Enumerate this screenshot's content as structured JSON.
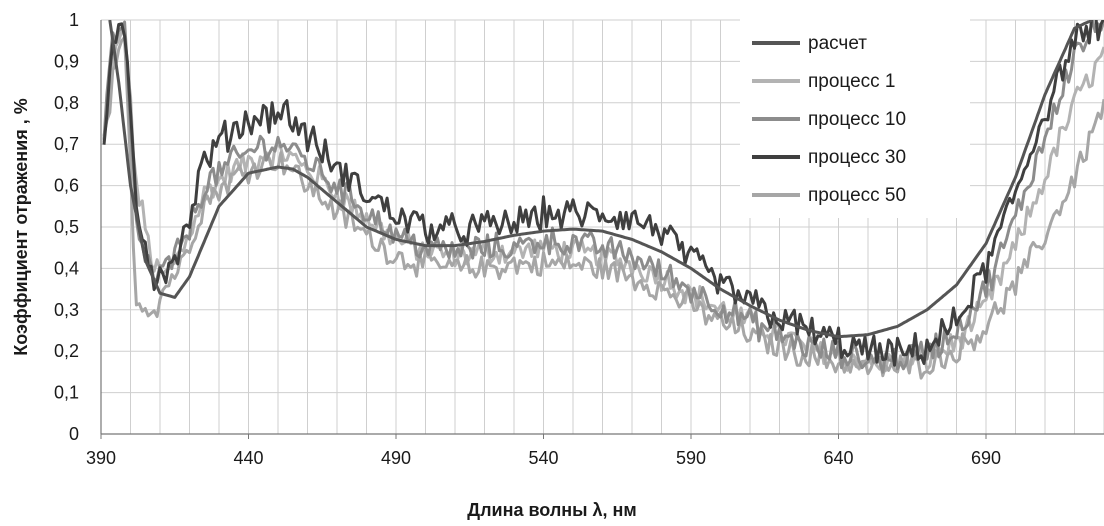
{
  "chart_data": {
    "type": "line",
    "xlabel": "Длина волны λ, нм",
    "ylabel": "Коэффициент отражения , %",
    "xlim": [
      390,
      730
    ],
    "ylim": [
      0,
      1
    ],
    "x_ticks": [
      390,
      440,
      490,
      540,
      590,
      640,
      690
    ],
    "x_tick_labels": [
      "390",
      "440",
      "490",
      "540",
      "590",
      "640",
      "690"
    ],
    "x_minor_step": 10,
    "y_ticks": [
      0,
      0.1,
      0.2,
      0.3,
      0.4,
      0.5,
      0.6,
      0.7,
      0.8,
      0.9,
      1
    ],
    "y_tick_labels": [
      "0",
      "0,1",
      "0,2",
      "0,3",
      "0,4",
      "0,5",
      "0,6",
      "0,7",
      "0,8",
      "0,9",
      "1"
    ],
    "grid": true,
    "legend_position": "top-right",
    "series": [
      {
        "name": "расчет",
        "color": "#555555",
        "noisy": false,
        "x": [
          393,
          396,
          400,
          405,
          410,
          415,
          420,
          430,
          440,
          450,
          455,
          460,
          470,
          480,
          490,
          500,
          510,
          520,
          530,
          540,
          550,
          560,
          570,
          580,
          590,
          600,
          610,
          620,
          630,
          640,
          650,
          660,
          670,
          680,
          690,
          700,
          710,
          720,
          726
        ],
        "y": [
          1.0,
          0.85,
          0.6,
          0.42,
          0.34,
          0.33,
          0.38,
          0.55,
          0.63,
          0.645,
          0.64,
          0.62,
          0.56,
          0.5,
          0.47,
          0.455,
          0.455,
          0.465,
          0.48,
          0.49,
          0.495,
          0.49,
          0.47,
          0.44,
          0.4,
          0.35,
          0.31,
          0.275,
          0.25,
          0.235,
          0.24,
          0.26,
          0.3,
          0.36,
          0.46,
          0.62,
          0.82,
          0.98,
          1.0
        ]
      },
      {
        "name": "процесс 1",
        "color": "#b3b3b3",
        "noisy": true,
        "amp": 0.028,
        "x": [
          391,
          394,
          398,
          402,
          408,
          412,
          418,
          425,
          435,
          445,
          452,
          460,
          470,
          480,
          490,
          500,
          510,
          520,
          530,
          540,
          550,
          560,
          570,
          580,
          590,
          600,
          610,
          620,
          630,
          640,
          650,
          660,
          670,
          680,
          690,
          700,
          710,
          720,
          730
        ],
        "y": [
          0.7,
          0.9,
          0.98,
          0.6,
          0.4,
          0.38,
          0.45,
          0.58,
          0.64,
          0.67,
          0.68,
          0.64,
          0.58,
          0.52,
          0.47,
          0.44,
          0.43,
          0.44,
          0.44,
          0.45,
          0.44,
          0.43,
          0.41,
          0.38,
          0.34,
          0.3,
          0.27,
          0.24,
          0.21,
          0.19,
          0.17,
          0.17,
          0.18,
          0.22,
          0.31,
          0.45,
          0.62,
          0.8,
          0.92
        ]
      },
      {
        "name": "процесс 10",
        "color": "#8c8c8c",
        "noisy": true,
        "amp": 0.03,
        "x": [
          391,
          394,
          398,
          402,
          408,
          412,
          418,
          425,
          435,
          445,
          452,
          460,
          470,
          480,
          490,
          500,
          510,
          520,
          530,
          540,
          550,
          560,
          570,
          580,
          590,
          600,
          610,
          620,
          630,
          640,
          650,
          660,
          670,
          680,
          690,
          700,
          710,
          720,
          730
        ],
        "y": [
          0.72,
          0.95,
          0.98,
          0.5,
          0.37,
          0.4,
          0.46,
          0.6,
          0.66,
          0.7,
          0.7,
          0.66,
          0.6,
          0.54,
          0.48,
          0.45,
          0.44,
          0.45,
          0.45,
          0.47,
          0.46,
          0.45,
          0.43,
          0.39,
          0.35,
          0.31,
          0.27,
          0.24,
          0.21,
          0.19,
          0.18,
          0.18,
          0.2,
          0.25,
          0.35,
          0.52,
          0.72,
          0.92,
          1.0
        ]
      },
      {
        "name": "процесс 30",
        "color": "#3f3f3f",
        "noisy": true,
        "amp": 0.035,
        "x": [
          391,
          394,
          398,
          402,
          408,
          412,
          418,
          425,
          435,
          445,
          452,
          460,
          470,
          480,
          490,
          500,
          510,
          520,
          530,
          540,
          550,
          560,
          570,
          580,
          590,
          600,
          610,
          620,
          630,
          640,
          650,
          660,
          670,
          680,
          690,
          700,
          710,
          720,
          730
        ],
        "y": [
          0.72,
          0.92,
          0.98,
          0.55,
          0.38,
          0.4,
          0.47,
          0.66,
          0.74,
          0.77,
          0.78,
          0.72,
          0.64,
          0.58,
          0.53,
          0.5,
          0.49,
          0.5,
          0.51,
          0.53,
          0.53,
          0.53,
          0.52,
          0.49,
          0.42,
          0.36,
          0.32,
          0.28,
          0.25,
          0.22,
          0.2,
          0.19,
          0.21,
          0.27,
          0.4,
          0.58,
          0.78,
          0.95,
          1.0
        ]
      },
      {
        "name": "процесс 50",
        "color": "#a6a6a6",
        "noisy": true,
        "amp": 0.028,
        "x": [
          391,
          394,
          398,
          402,
          408,
          412,
          418,
          425,
          435,
          445,
          452,
          460,
          470,
          480,
          490,
          500,
          510,
          520,
          530,
          540,
          550,
          560,
          570,
          580,
          590,
          600,
          610,
          620,
          630,
          640,
          650,
          660,
          670,
          680,
          690,
          700,
          710,
          720,
          730
        ],
        "y": [
          0.7,
          0.85,
          0.95,
          0.32,
          0.3,
          0.36,
          0.42,
          0.56,
          0.62,
          0.66,
          0.66,
          0.6,
          0.54,
          0.48,
          0.43,
          0.41,
          0.4,
          0.4,
          0.41,
          0.41,
          0.41,
          0.4,
          0.38,
          0.35,
          0.31,
          0.27,
          0.24,
          0.21,
          0.19,
          0.17,
          0.16,
          0.16,
          0.17,
          0.2,
          0.26,
          0.36,
          0.48,
          0.62,
          0.8
        ]
      }
    ]
  }
}
